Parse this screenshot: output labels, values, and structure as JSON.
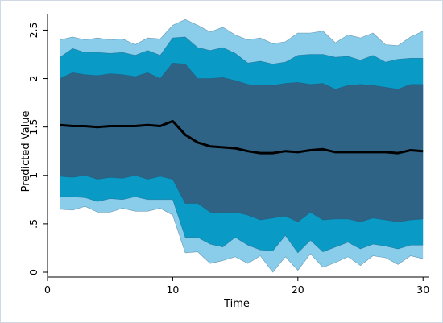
{
  "chart_data": {
    "type": "area",
    "title": "",
    "xlabel": "Time",
    "ylabel": "Predicted Value",
    "xlim": [
      0,
      30.5
    ],
    "ylim": [
      -0.05,
      2.67
    ],
    "xticks": [
      0,
      10,
      20,
      30
    ],
    "xtick_labels": [
      "0",
      "10",
      "20",
      "30"
    ],
    "yticks": [
      0,
      0.5,
      1,
      1.5,
      2,
      2.5
    ],
    "ytick_labels": [
      "0",
      ".5",
      "1",
      "1.5",
      "2",
      "2.5"
    ],
    "grid": false,
    "legend": "none",
    "x": [
      1,
      2,
      3,
      4,
      5,
      6,
      7,
      8,
      9,
      10,
      11,
      12,
      13,
      14,
      15,
      16,
      17,
      18,
      19,
      20,
      21,
      22,
      23,
      24,
      25,
      26,
      27,
      28,
      29,
      30
    ],
    "line": {
      "color": "#000000",
      "values": [
        1.52,
        1.51,
        1.51,
        1.5,
        1.51,
        1.51,
        1.51,
        1.52,
        1.51,
        1.56,
        1.42,
        1.34,
        1.3,
        1.29,
        1.28,
        1.25,
        1.23,
        1.23,
        1.25,
        1.24,
        1.26,
        1.27,
        1.24,
        1.24,
        1.24,
        1.24,
        1.24,
        1.23,
        1.26,
        1.25
      ]
    },
    "bands": [
      {
        "color": "#89cdeb",
        "upper": [
          2.4,
          2.43,
          2.4,
          2.42,
          2.4,
          2.41,
          2.35,
          2.42,
          2.41,
          2.55,
          2.61,
          2.55,
          2.48,
          2.53,
          2.45,
          2.4,
          2.42,
          2.36,
          2.38,
          2.47,
          2.47,
          2.49,
          2.37,
          2.45,
          2.42,
          2.47,
          2.35,
          2.34,
          2.43,
          2.49
        ],
        "lower": [
          0.65,
          0.64,
          0.68,
          0.62,
          0.62,
          0.66,
          0.63,
          0.63,
          0.66,
          0.59,
          0.2,
          0.21,
          0.09,
          0.12,
          0.16,
          0.09,
          0.17,
          0.0,
          0.16,
          0.02,
          0.19,
          0.05,
          0.1,
          0.16,
          0.07,
          0.17,
          0.15,
          0.08,
          0.17,
          0.14
        ]
      },
      {
        "color": "#0a9ac6",
        "upper": [
          2.22,
          2.31,
          2.27,
          2.27,
          2.26,
          2.27,
          2.24,
          2.29,
          2.24,
          2.42,
          2.43,
          2.32,
          2.29,
          2.32,
          2.26,
          2.16,
          2.18,
          2.15,
          2.17,
          2.24,
          2.25,
          2.25,
          2.22,
          2.23,
          2.19,
          2.24,
          2.17,
          2.2,
          2.21,
          2.21
        ],
        "lower": [
          0.78,
          0.78,
          0.77,
          0.73,
          0.76,
          0.75,
          0.78,
          0.75,
          0.75,
          0.75,
          0.36,
          0.36,
          0.29,
          0.26,
          0.36,
          0.28,
          0.23,
          0.22,
          0.38,
          0.2,
          0.33,
          0.21,
          0.26,
          0.31,
          0.24,
          0.29,
          0.27,
          0.24,
          0.28,
          0.28
        ]
      },
      {
        "color": "#2f6385",
        "upper": [
          2.0,
          2.06,
          2.04,
          2.03,
          2.05,
          2.04,
          2.02,
          2.06,
          2.0,
          2.16,
          2.15,
          2.0,
          2.0,
          2.01,
          1.98,
          1.94,
          1.93,
          1.93,
          1.95,
          1.96,
          1.94,
          1.95,
          1.89,
          1.93,
          1.94,
          1.93,
          1.91,
          1.89,
          1.94,
          1.94
        ],
        "lower": [
          0.99,
          0.98,
          1.0,
          0.96,
          0.98,
          0.97,
          1.0,
          0.96,
          0.99,
          0.96,
          0.71,
          0.71,
          0.62,
          0.61,
          0.62,
          0.59,
          0.54,
          0.56,
          0.58,
          0.52,
          0.62,
          0.54,
          0.55,
          0.55,
          0.52,
          0.56,
          0.54,
          0.52,
          0.54,
          0.55
        ]
      }
    ]
  }
}
